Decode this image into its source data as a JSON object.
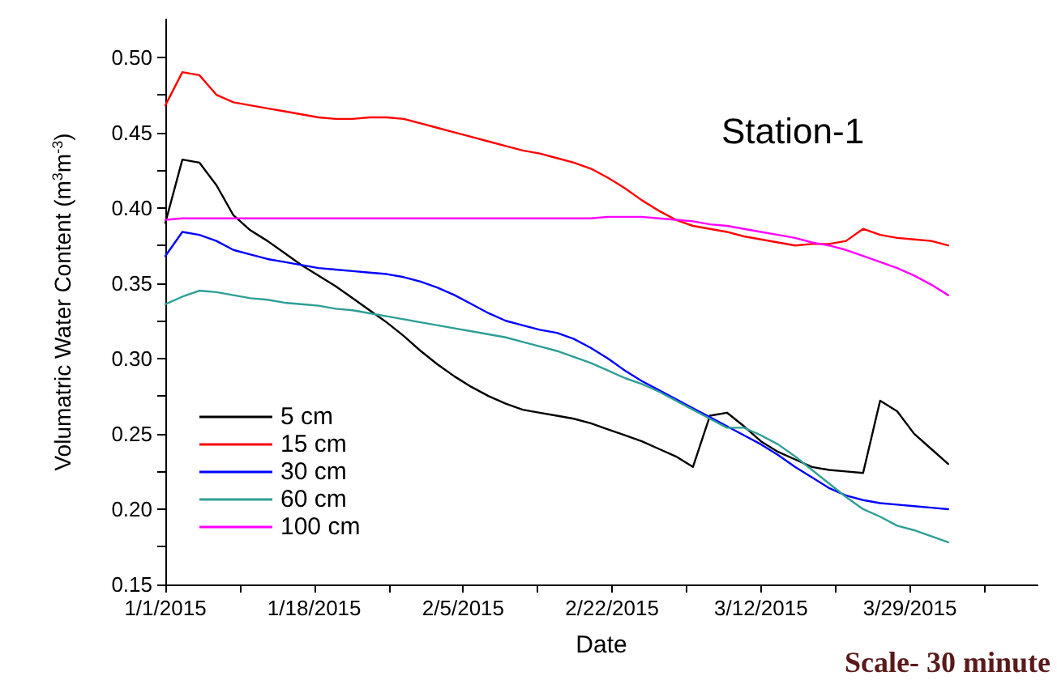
{
  "chart_data": {
    "type": "line",
    "xlabel": "Date",
    "ylabel": "Volumatric Water Content (m$^{3}$m$^{-3}$)",
    "annotations": [
      "Station-1",
      "Scale- 30 minute"
    ],
    "x": [
      "2015-01-01",
      "2015-01-03",
      "2015-01-05",
      "2015-01-07",
      "2015-01-09",
      "2015-01-11",
      "2015-01-13",
      "2015-01-15",
      "2015-01-17",
      "2015-01-19",
      "2015-01-21",
      "2015-01-23",
      "2015-01-25",
      "2015-01-27",
      "2015-01-29",
      "2015-01-31",
      "2015-02-02",
      "2015-02-04",
      "2015-02-06",
      "2015-02-08",
      "2015-02-10",
      "2015-02-12",
      "2015-02-14",
      "2015-02-16",
      "2015-02-18",
      "2015-02-20",
      "2015-02-22",
      "2015-02-24",
      "2015-02-26",
      "2015-02-28",
      "2015-03-02",
      "2015-03-04",
      "2015-03-06",
      "2015-03-08",
      "2015-03-10",
      "2015-03-12",
      "2015-03-14",
      "2015-03-16",
      "2015-03-18",
      "2015-03-20",
      "2015-03-22",
      "2015-03-24",
      "2015-03-26",
      "2015-03-28",
      "2015-03-30",
      "2015-04-01",
      "2015-04-03"
    ],
    "series": [
      {
        "name": "5 cm",
        "color": "#000000",
        "values": [
          0.39,
          0.432,
          0.43,
          0.415,
          0.395,
          0.385,
          0.378,
          0.37,
          0.362,
          0.355,
          0.348,
          0.34,
          0.332,
          0.324,
          0.315,
          0.305,
          0.296,
          0.288,
          0.281,
          0.275,
          0.27,
          0.266,
          0.264,
          0.262,
          0.26,
          0.257,
          0.253,
          0.249,
          0.245,
          0.24,
          0.235,
          0.228,
          0.262,
          0.264,
          0.255,
          0.245,
          0.238,
          0.233,
          0.228,
          0.226,
          0.225,
          0.224,
          0.272,
          0.265,
          0.25,
          0.24,
          0.23
        ]
      },
      {
        "name": "15 cm",
        "color": "#ff0000",
        "values": [
          0.468,
          0.49,
          0.488,
          0.475,
          0.47,
          0.468,
          0.466,
          0.464,
          0.462,
          0.46,
          0.459,
          0.459,
          0.46,
          0.46,
          0.459,
          0.456,
          0.453,
          0.45,
          0.447,
          0.444,
          0.441,
          0.438,
          0.436,
          0.433,
          0.43,
          0.426,
          0.42,
          0.413,
          0.405,
          0.398,
          0.392,
          0.388,
          0.386,
          0.384,
          0.381,
          0.379,
          0.377,
          0.375,
          0.376,
          0.376,
          0.378,
          0.386,
          0.382,
          0.38,
          0.379,
          0.378,
          0.375
        ]
      },
      {
        "name": "30 cm",
        "color": "#0000ff",
        "values": [
          0.368,
          0.384,
          0.382,
          0.378,
          0.372,
          0.369,
          0.366,
          0.364,
          0.362,
          0.36,
          0.359,
          0.358,
          0.357,
          0.356,
          0.354,
          0.351,
          0.347,
          0.342,
          0.336,
          0.33,
          0.325,
          0.322,
          0.319,
          0.317,
          0.313,
          0.307,
          0.3,
          0.292,
          0.285,
          0.279,
          0.273,
          0.267,
          0.261,
          0.255,
          0.249,
          0.243,
          0.236,
          0.228,
          0.221,
          0.214,
          0.209,
          0.206,
          0.204,
          0.203,
          0.202,
          0.201,
          0.2
        ]
      },
      {
        "name": "60 cm",
        "color": "#2e9e96",
        "values": [
          0.336,
          0.341,
          0.345,
          0.344,
          0.342,
          0.34,
          0.339,
          0.337,
          0.336,
          0.335,
          0.333,
          0.332,
          0.33,
          0.328,
          0.326,
          0.324,
          0.322,
          0.32,
          0.318,
          0.316,
          0.314,
          0.311,
          0.308,
          0.305,
          0.301,
          0.297,
          0.292,
          0.287,
          0.283,
          0.278,
          0.272,
          0.266,
          0.26,
          0.254,
          0.254,
          0.249,
          0.243,
          0.235,
          0.226,
          0.217,
          0.208,
          0.2,
          0.195,
          0.189,
          0.186,
          0.182,
          0.178
        ]
      },
      {
        "name": "100 cm",
        "color": "#ff00ff",
        "values": [
          0.392,
          0.393,
          0.393,
          0.393,
          0.393,
          0.393,
          0.393,
          0.393,
          0.393,
          0.393,
          0.393,
          0.393,
          0.393,
          0.393,
          0.393,
          0.393,
          0.393,
          0.393,
          0.393,
          0.393,
          0.393,
          0.393,
          0.393,
          0.393,
          0.393,
          0.393,
          0.394,
          0.394,
          0.394,
          0.393,
          0.392,
          0.391,
          0.389,
          0.388,
          0.386,
          0.384,
          0.382,
          0.38,
          0.377,
          0.375,
          0.372,
          0.368,
          0.364,
          0.36,
          0.355,
          0.349,
          0.342
        ]
      }
    ],
    "xlim": [
      "2015-01-01",
      "2015-04-13T12:00"
    ],
    "xticks": [
      {
        "value": "2015-01-01",
        "label": "1/1/2015"
      },
      {
        "value": "2015-01-09T18:00",
        "label": null
      },
      {
        "value": "2015-01-18T12:00",
        "label": "1/18/2015"
      },
      {
        "value": "2015-01-27T06:00",
        "label": null
      },
      {
        "value": "2015-02-05",
        "label": "2/5/2015"
      },
      {
        "value": "2015-02-13T18:00",
        "label": null
      },
      {
        "value": "2015-02-22T12:00",
        "label": "2/22/2015"
      },
      {
        "value": "2015-03-03T06:00",
        "label": null
      },
      {
        "value": "2015-03-12",
        "label": "3/12/2015"
      },
      {
        "value": "2015-03-20T18:00",
        "label": null
      },
      {
        "value": "2015-03-29T12:00",
        "label": "3/29/2015"
      },
      {
        "value": "2015-04-07T06:00",
        "label": null
      }
    ],
    "ylim": [
      0.15,
      0.525
    ],
    "yticks": [
      {
        "value": 0.15,
        "label": "0.15"
      },
      {
        "value": 0.175,
        "label": null
      },
      {
        "value": 0.2,
        "label": "0.20"
      },
      {
        "value": 0.225,
        "label": null
      },
      {
        "value": 0.25,
        "label": "0.25"
      },
      {
        "value": 0.275,
        "label": null
      },
      {
        "value": 0.3,
        "label": "0.30"
      },
      {
        "value": 0.325,
        "label": null
      },
      {
        "value": 0.35,
        "label": "0.35"
      },
      {
        "value": 0.375,
        "label": null
      },
      {
        "value": 0.4,
        "label": "0.40"
      },
      {
        "value": 0.425,
        "label": null
      },
      {
        "value": 0.45,
        "label": "0.45"
      },
      {
        "value": 0.475,
        "label": null
      },
      {
        "value": 0.5,
        "label": "0.50"
      }
    ],
    "grid": false,
    "legend": "bottom left",
    "marker": "none",
    "line_style": "solid"
  }
}
